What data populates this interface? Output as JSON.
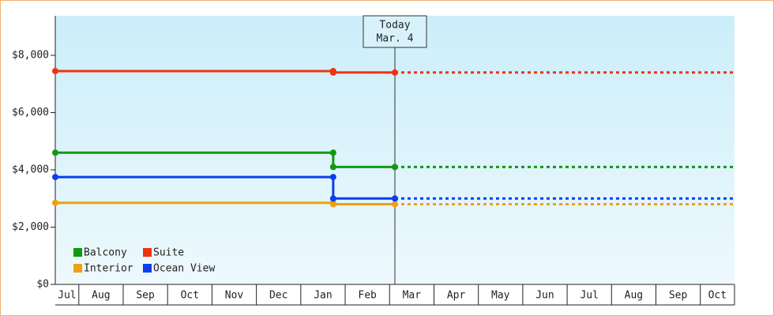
{
  "chart_data": {
    "type": "step-line",
    "x": [
      0.47,
      6.73,
      6.73,
      8.12
    ],
    "series": [
      {
        "name": "Balcony",
        "color": "#119911",
        "values": [
          4600,
          4600,
          4100,
          4100
        ]
      },
      {
        "name": "Suite",
        "color": "#ee3311",
        "values": [
          7450,
          7450,
          7400,
          7400
        ]
      },
      {
        "name": "Interior",
        "color": "#f0a010",
        "values": [
          2850,
          2850,
          2800,
          2800
        ]
      },
      {
        "name": "Ocean View",
        "color": "#0a3ef0",
        "values": [
          3750,
          3750,
          3000,
          3000
        ]
      }
    ],
    "ylim": [
      0,
      9380
    ],
    "yticks": [
      {
        "value": 0,
        "label": "$0"
      },
      {
        "value": 2000,
        "label": "$2,000"
      },
      {
        "value": 4000,
        "label": "$4,000"
      },
      {
        "value": 6000,
        "label": "$6,000"
      },
      {
        "value": 8000,
        "label": "$8,000"
      }
    ],
    "xlim": [
      0.47,
      15.77
    ],
    "xticks": [
      {
        "value": 0,
        "label": "Jul"
      },
      {
        "value": 1,
        "label": "Aug"
      },
      {
        "value": 2,
        "label": "Sep"
      },
      {
        "value": 3,
        "label": "Oct"
      },
      {
        "value": 4,
        "label": "Nov"
      },
      {
        "value": 5,
        "label": "Dec"
      },
      {
        "value": 6,
        "label": "Jan"
      },
      {
        "value": 7,
        "label": "Feb"
      },
      {
        "value": 8,
        "label": "Mar"
      },
      {
        "value": 9,
        "label": "Apr"
      },
      {
        "value": 10,
        "label": "May"
      },
      {
        "value": 11,
        "label": "Jun"
      },
      {
        "value": 12,
        "label": "Jul"
      },
      {
        "value": 13,
        "label": "Aug"
      },
      {
        "value": 14,
        "label": "Sep"
      },
      {
        "value": 15,
        "label": "Oct"
      }
    ],
    "annotation": {
      "x": 8.12,
      "lines": [
        "Today",
        "Mar. 4"
      ]
    },
    "legend": "lower left"
  }
}
